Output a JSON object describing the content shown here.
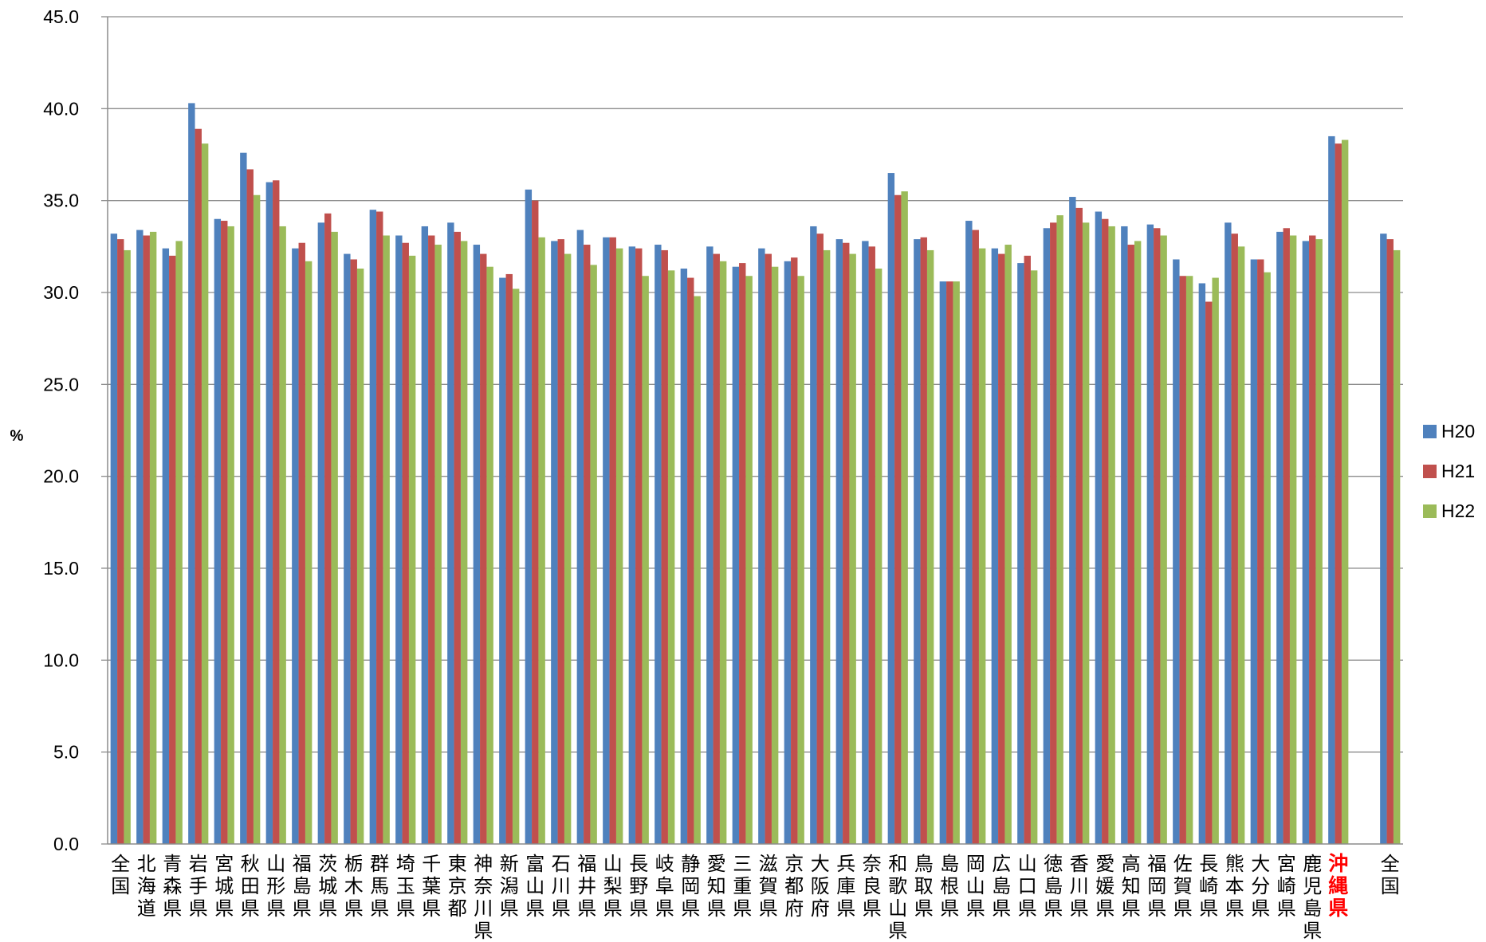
{
  "chart_data": {
    "type": "bar",
    "title": "",
    "xlabel": "",
    "ylabel": "%",
    "ylim": [
      0,
      45
    ],
    "ytick_step": 5,
    "grid": true,
    "legend_placement": "right",
    "highlight_category": "沖縄県",
    "highlight_color": "#FF0000",
    "categories": [
      "全国",
      "北海道",
      "青森県",
      "岩手県",
      "宮城県",
      "秋田県",
      "山形県",
      "福島県",
      "茨城県",
      "栃木県",
      "群馬県",
      "埼玉県",
      "千葉県",
      "東京都",
      "神奈川県",
      "新潟県",
      "富山県",
      "石川県",
      "福井県",
      "山梨県",
      "長野県",
      "岐阜県",
      "静岡県",
      "愛知県",
      "三重県",
      "滋賀県",
      "京都府",
      "大阪府",
      "兵庫県",
      "奈良県",
      "和歌山県",
      "鳥取県",
      "島根県",
      "岡山県",
      "広島県",
      "山口県",
      "徳島県",
      "香川県",
      "愛媛県",
      "高知県",
      "福岡県",
      "佐賀県",
      "長崎県",
      "熊本県",
      "大分県",
      "宮崎県",
      "鹿児島県",
      "沖縄県",
      "",
      "全国"
    ],
    "series": [
      {
        "name": "H20",
        "color": "#4F81BD",
        "values": [
          33.2,
          33.4,
          32.4,
          40.3,
          34.0,
          37.6,
          36.0,
          32.4,
          33.8,
          32.1,
          34.5,
          33.1,
          33.6,
          33.8,
          32.6,
          30.8,
          35.6,
          32.8,
          33.4,
          33.0,
          32.5,
          32.6,
          31.3,
          32.5,
          31.4,
          32.4,
          31.7,
          33.6,
          32.9,
          32.8,
          36.5,
          32.9,
          30.6,
          33.9,
          32.4,
          31.6,
          33.5,
          35.2,
          34.4,
          33.6,
          33.7,
          31.8,
          30.5,
          33.8,
          31.8,
          33.3,
          32.8,
          38.5,
          null,
          33.2
        ]
      },
      {
        "name": "H21",
        "color": "#C0504D",
        "values": [
          32.9,
          33.1,
          32.0,
          38.9,
          33.9,
          36.7,
          36.1,
          32.7,
          34.3,
          31.8,
          34.4,
          32.7,
          33.1,
          33.3,
          32.1,
          31.0,
          35.0,
          32.9,
          32.6,
          33.0,
          32.4,
          32.3,
          30.8,
          32.1,
          31.6,
          32.1,
          31.9,
          33.2,
          32.7,
          32.5,
          35.3,
          33.0,
          30.6,
          33.4,
          32.1,
          32.0,
          33.8,
          34.6,
          34.0,
          32.6,
          33.5,
          30.9,
          29.5,
          33.2,
          31.8,
          33.5,
          33.1,
          38.1,
          null,
          32.9
        ]
      },
      {
        "name": "H22",
        "color": "#9BBB59",
        "values": [
          32.3,
          33.3,
          32.8,
          38.1,
          33.6,
          35.3,
          33.6,
          31.7,
          33.3,
          31.3,
          33.1,
          32.0,
          32.6,
          32.8,
          31.4,
          30.2,
          33.0,
          32.1,
          31.5,
          32.4,
          30.9,
          31.2,
          29.8,
          31.7,
          30.9,
          31.4,
          30.9,
          32.3,
          32.1,
          31.3,
          35.5,
          32.3,
          30.6,
          32.4,
          32.6,
          31.2,
          34.2,
          33.8,
          33.6,
          32.8,
          33.1,
          30.9,
          30.8,
          32.5,
          31.1,
          33.1,
          32.9,
          38.3,
          null,
          32.3
        ]
      }
    ]
  }
}
